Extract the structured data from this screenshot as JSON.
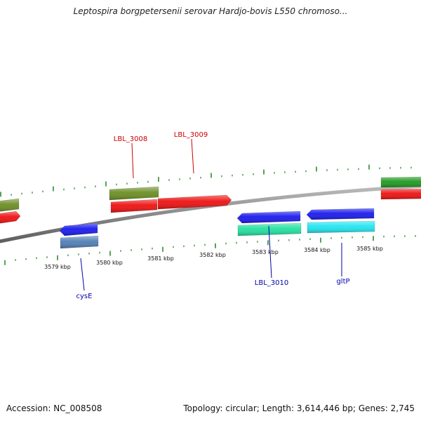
{
  "title": "Leptospira borgpetersenii serovar Hardjo-bovis L550 chromoso...",
  "footer": {
    "accession": "Accession: NC_008508",
    "stats": "Topology: circular; Length: 3,614,446 bp; Genes: 2,745"
  },
  "colors": {
    "backbone": "#8a8a8a",
    "tick": "#2e8b2e",
    "label_forward": "#cc0000",
    "label_reverse": "#0000aa"
  },
  "scale_labels": [
    "3579 kbp",
    "3580 kbp",
    "3581 kbp",
    "3582 kbp",
    "3583 kbp",
    "3584 kbp",
    "3585 kbp"
  ],
  "gene_labels": {
    "lbl_3008": "LBL_3008",
    "lbl_3009": "LBL_3009",
    "lbl_3010": "LBL_3010",
    "cysE": "cysE",
    "gltP": "gltP"
  },
  "features": [
    {
      "name": "gene-olive-left",
      "color": "#6b8e23"
    },
    {
      "name": "gene-red-left",
      "color": "#ee1111"
    },
    {
      "name": "cysE-gene",
      "color": "#1a1aee"
    },
    {
      "name": "cysE-cds",
      "color": "#4f7fb4"
    },
    {
      "name": "LBL_3008-gene",
      "color": "#6b8e23"
    },
    {
      "name": "LBL_3008-cds",
      "color": "#ee1111"
    },
    {
      "name": "LBL_3009-cds",
      "color": "#ee1111"
    },
    {
      "name": "LBL_3010-gene",
      "color": "#1a1aee"
    },
    {
      "name": "LBL_3010-cds",
      "color": "#22e0a0"
    },
    {
      "name": "gltP-gene",
      "color": "#1a1aee"
    },
    {
      "name": "gltP-cds",
      "color": "#22e5f0"
    },
    {
      "name": "gene-green-right",
      "color": "#1f9a1f"
    },
    {
      "name": "gene-red-right",
      "color": "#ee1111"
    }
  ]
}
